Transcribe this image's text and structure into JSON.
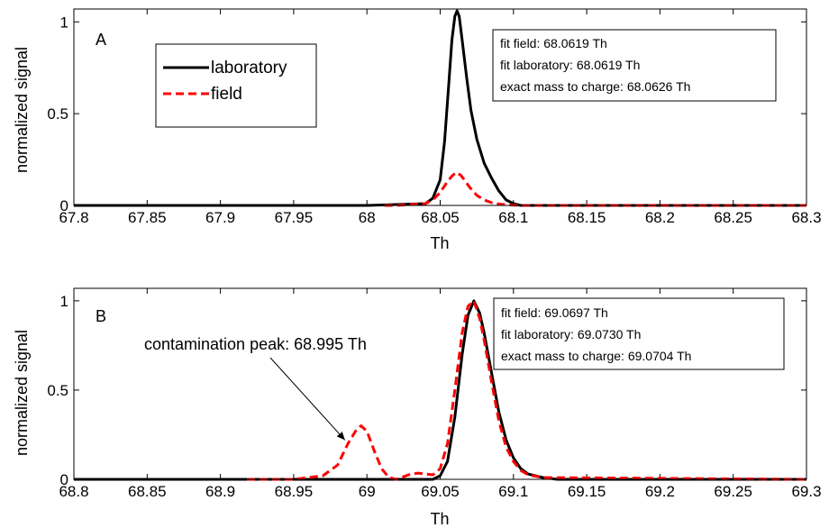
{
  "chart_data": [
    {
      "type": "line",
      "panel_label": "A",
      "xlabel": "Th",
      "ylabel": "normalized signal",
      "xlim": [
        67.8,
        68.3
      ],
      "ylim": [
        0,
        1.07
      ],
      "xticks": [
        "67.8",
        "67.85",
        "67.9",
        "67.95",
        "68",
        "68.05",
        "68.1",
        "68.15",
        "68.2",
        "68.25",
        "68.3"
      ],
      "yticks": [
        "0",
        "0.5",
        "1"
      ],
      "grid": false,
      "legend": {
        "placement": "upper-left",
        "entries": [
          "laboratory",
          "field"
        ]
      },
      "info_box": [
        "fit field: 68.0619 Th",
        "fit laboratory: 68.0619 Th",
        "exact mass to charge: 68.0626 Th"
      ],
      "series": [
        {
          "name": "laboratory",
          "color": "#000000",
          "dash": "solid",
          "x": [
            67.8,
            68.0,
            68.04,
            68.045,
            68.05,
            68.053,
            68.056,
            68.058,
            68.06,
            68.0615,
            68.063,
            68.065,
            68.068,
            68.071,
            68.075,
            68.08,
            68.085,
            68.09,
            68.095,
            68.1,
            68.105,
            68.3
          ],
          "y": [
            0,
            0,
            0.01,
            0.04,
            0.14,
            0.35,
            0.68,
            0.9,
            1.03,
            1.06,
            1.03,
            0.9,
            0.7,
            0.52,
            0.36,
            0.23,
            0.15,
            0.08,
            0.03,
            0.01,
            0,
            0
          ]
        },
        {
          "name": "field",
          "color": "#ff0000",
          "dash": "dashed",
          "x": [
            68.012,
            68.02,
            68.04,
            68.045,
            68.05,
            68.055,
            68.058,
            68.061,
            68.064,
            68.067,
            68.07,
            68.075,
            68.08,
            68.085,
            68.09,
            68.095,
            68.1,
            68.105,
            68.3
          ],
          "y": [
            0,
            0,
            0.01,
            0.03,
            0.07,
            0.13,
            0.16,
            0.18,
            0.165,
            0.135,
            0.1,
            0.055,
            0.03,
            0.015,
            0.008,
            0.004,
            0.002,
            0,
            0
          ]
        }
      ]
    },
    {
      "type": "line",
      "panel_label": "B",
      "xlabel": "Th",
      "ylabel": "normalized signal",
      "xlim": [
        68.8,
        69.3
      ],
      "ylim": [
        0,
        1.07
      ],
      "xticks": [
        "68.8",
        "68.85",
        "68.9",
        "68.95",
        "69",
        "69.05",
        "69.1",
        "69.15",
        "69.2",
        "69.25",
        "69.3"
      ],
      "yticks": [
        "0",
        "0.5",
        "1"
      ],
      "grid": false,
      "annotation": {
        "text": "contamination peak: 68.995 Th",
        "points_to": [
          68.985,
          0.22
        ]
      },
      "info_box": [
        "fit field: 69.0697 Th",
        "fit laboratory: 69.0730 Th",
        "exact mass to charge: 69.0704 Th"
      ],
      "series": [
        {
          "name": "laboratory",
          "color": "#000000",
          "dash": "solid",
          "x": [
            68.8,
            69.045,
            69.05,
            69.055,
            69.06,
            69.065,
            69.069,
            69.073,
            69.077,
            69.08,
            69.085,
            69.09,
            69.095,
            69.1,
            69.105,
            69.11,
            69.12,
            69.13,
            69.3
          ],
          "y": [
            0,
            0,
            0.02,
            0.1,
            0.35,
            0.7,
            0.92,
            1.0,
            0.93,
            0.82,
            0.6,
            0.38,
            0.22,
            0.12,
            0.06,
            0.03,
            0.01,
            0,
            0
          ]
        },
        {
          "name": "field",
          "color": "#ff0000",
          "dash": "dashed",
          "x": [
            68.918,
            68.95,
            68.97,
            68.98,
            68.987,
            68.993,
            68.996,
            69.0,
            69.005,
            69.01,
            69.015,
            69.02,
            69.025,
            69.03,
            69.035,
            69.04,
            69.045,
            69.05,
            69.055,
            69.06,
            69.065,
            69.069,
            69.073,
            69.077,
            69.08,
            69.085,
            69.09,
            69.095,
            69.1,
            69.105,
            69.11,
            69.12,
            69.3
          ],
          "y": [
            0,
            0,
            0.02,
            0.08,
            0.2,
            0.28,
            0.3,
            0.27,
            0.16,
            0.06,
            0.01,
            0.0,
            0.015,
            0.03,
            0.035,
            0.03,
            0.025,
            0.06,
            0.2,
            0.5,
            0.82,
            0.97,
            1.0,
            0.9,
            0.78,
            0.55,
            0.33,
            0.18,
            0.1,
            0.05,
            0.025,
            0.01,
            0
          ]
        }
      ]
    }
  ]
}
